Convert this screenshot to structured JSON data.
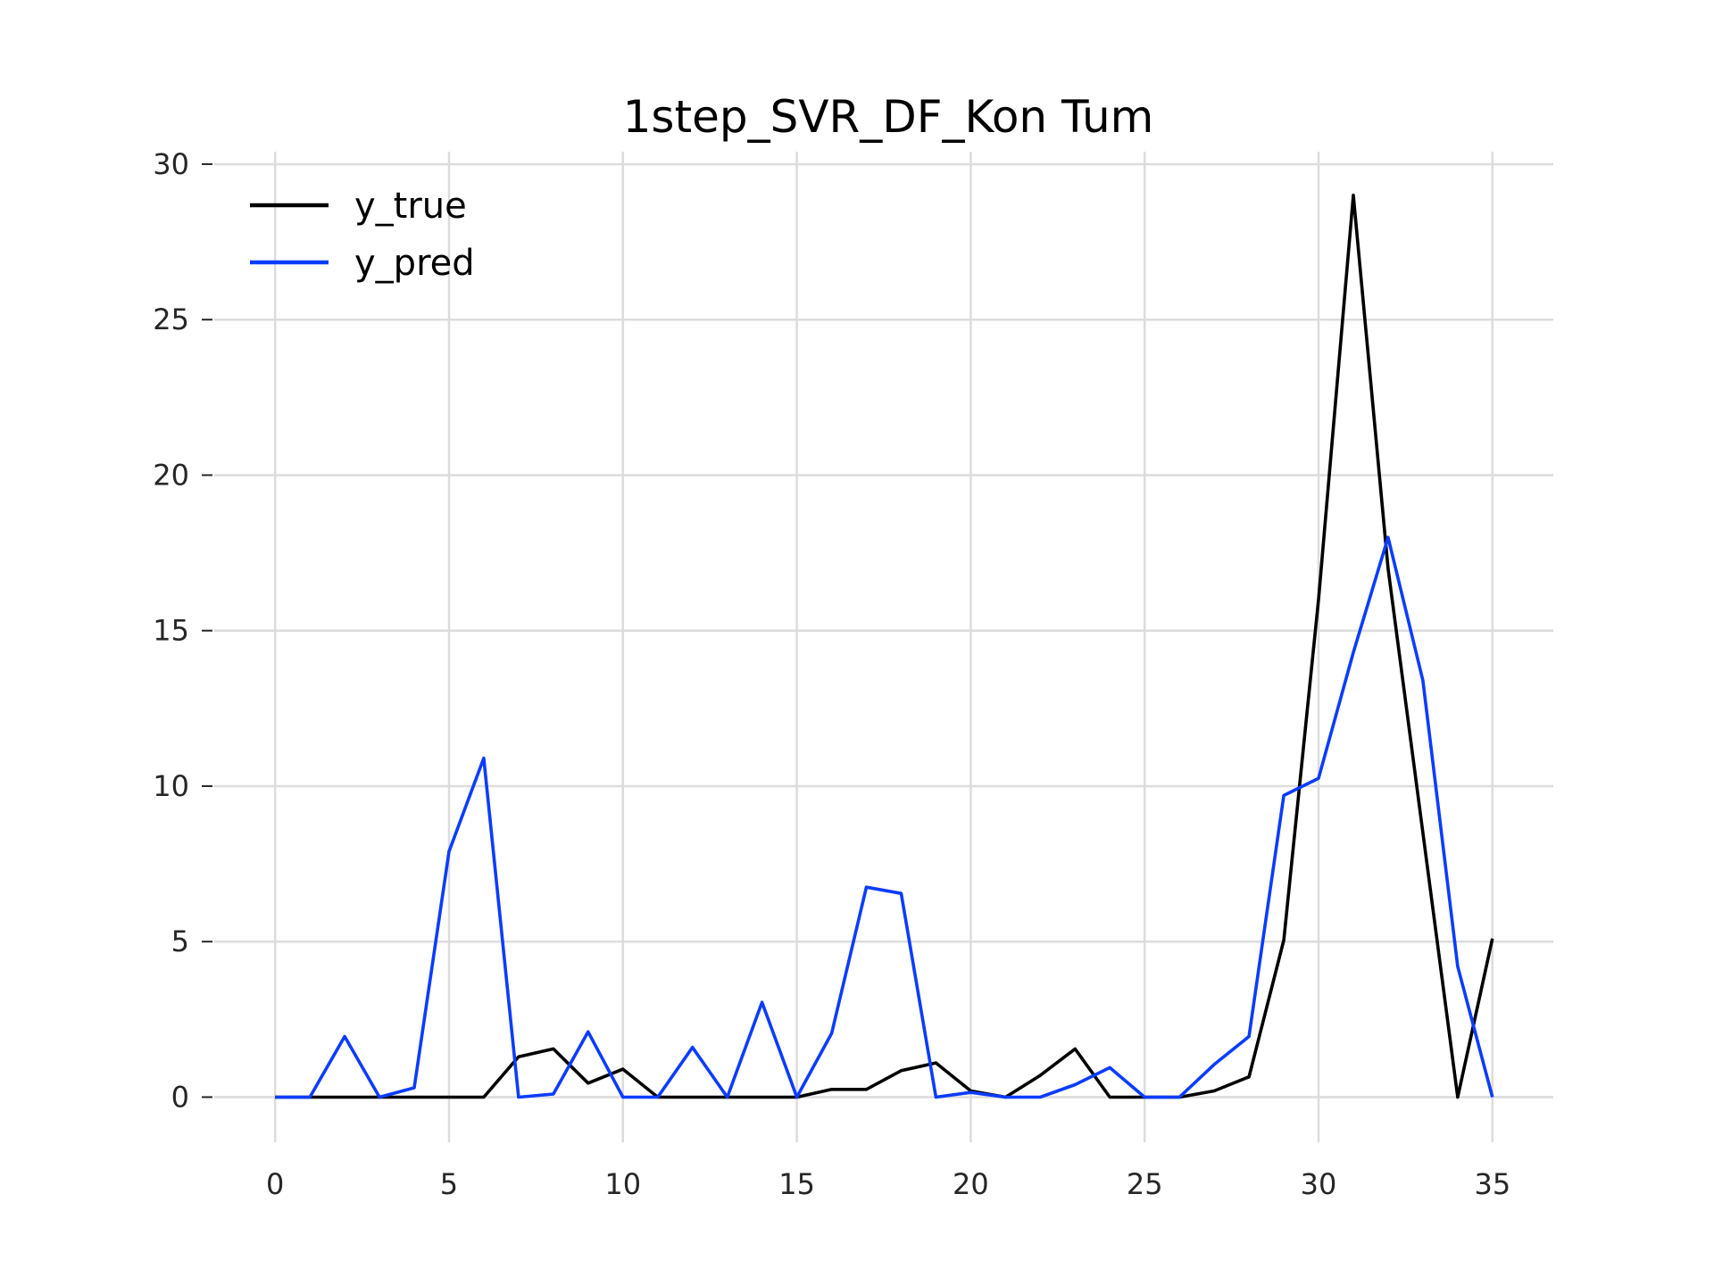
{
  "chart_data": {
    "type": "line",
    "title": "1step_SVR_DF_Kon Tum",
    "xlabel": "",
    "ylabel": "",
    "xlim": [
      -1.75,
      36.75
    ],
    "ylim": [
      -1.45,
      30.4
    ],
    "xticks": [
      0,
      5,
      10,
      15,
      20,
      25,
      30,
      35
    ],
    "yticks": [
      0,
      5,
      10,
      15,
      20,
      25,
      30
    ],
    "grid": true,
    "legend_position": "upper-left",
    "x": [
      0,
      1,
      2,
      3,
      4,
      5,
      6,
      7,
      8,
      9,
      10,
      11,
      12,
      13,
      14,
      15,
      16,
      17,
      18,
      19,
      20,
      21,
      22,
      23,
      24,
      25,
      26,
      27,
      28,
      29,
      30,
      31,
      32,
      33,
      34,
      35
    ],
    "series": [
      {
        "name": "y_true",
        "color": "#000000",
        "values": [
          0,
          0,
          0,
          0,
          0,
          0,
          0,
          1.3,
          1.55,
          0.45,
          0.9,
          0,
          0,
          0,
          0,
          0,
          0.25,
          0.25,
          0.85,
          1.1,
          0.2,
          0,
          0.7,
          1.55,
          0,
          0,
          0,
          0.2,
          0.65,
          5.05,
          16,
          29,
          17,
          8.5,
          0,
          5.1
        ]
      },
      {
        "name": "y_pred",
        "color": "#0b3cff",
        "values": [
          0,
          0,
          1.95,
          0,
          0.3,
          7.9,
          10.9,
          0,
          0.1,
          2.1,
          0,
          0,
          1.6,
          0,
          3.05,
          0,
          2.05,
          6.75,
          6.55,
          0,
          0.15,
          0,
          0,
          0.4,
          0.95,
          0,
          0,
          1.05,
          1.95,
          9.7,
          10.25,
          14.3,
          18,
          13.4,
          4.2,
          0
        ]
      }
    ]
  }
}
